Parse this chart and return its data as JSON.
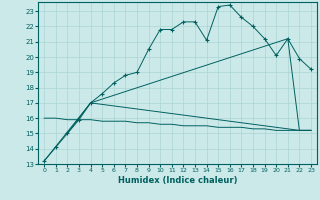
{
  "xlabel": "Humidex (Indice chaleur)",
  "bg_color": "#cce9e9",
  "grid_color": "#aad4d4",
  "line_color": "#006060",
  "xlim": [
    -0.5,
    23.5
  ],
  "ylim": [
    13,
    23.6
  ],
  "yticks": [
    13,
    14,
    15,
    16,
    17,
    18,
    19,
    20,
    21,
    22,
    23
  ],
  "xticks": [
    0,
    1,
    2,
    3,
    4,
    5,
    6,
    7,
    8,
    9,
    10,
    11,
    12,
    13,
    14,
    15,
    16,
    17,
    18,
    19,
    20,
    21,
    22,
    23
  ],
  "line1_x": [
    0,
    1,
    2,
    3,
    4,
    5,
    6,
    7,
    8,
    9,
    10,
    11,
    12,
    13,
    14,
    15,
    16,
    17,
    18,
    19,
    20,
    21,
    22,
    23
  ],
  "line1_y": [
    13.2,
    14.1,
    15.0,
    15.9,
    17.0,
    17.6,
    18.3,
    18.8,
    19.0,
    20.5,
    21.8,
    21.8,
    22.3,
    22.3,
    21.1,
    23.3,
    23.4,
    22.6,
    22.0,
    21.2,
    20.1,
    21.2,
    19.9,
    19.2
  ],
  "line2_x": [
    0,
    4,
    21,
    22,
    23
  ],
  "line2_y": [
    13.2,
    17.0,
    21.2,
    15.2,
    15.2
  ],
  "line3_x": [
    2,
    4,
    22,
    23
  ],
  "line3_y": [
    15.0,
    17.0,
    15.2,
    15.2
  ],
  "line4_x": [
    0,
    1,
    2,
    3,
    4,
    5,
    6,
    7,
    8,
    9,
    10,
    11,
    12,
    13,
    14,
    15,
    16,
    17,
    18,
    19,
    20,
    21,
    22,
    23
  ],
  "line4_y": [
    16.0,
    16.0,
    15.9,
    15.9,
    15.9,
    15.8,
    15.8,
    15.8,
    15.7,
    15.7,
    15.6,
    15.6,
    15.5,
    15.5,
    15.5,
    15.4,
    15.4,
    15.4,
    15.3,
    15.3,
    15.2,
    15.2,
    15.2,
    15.2
  ]
}
